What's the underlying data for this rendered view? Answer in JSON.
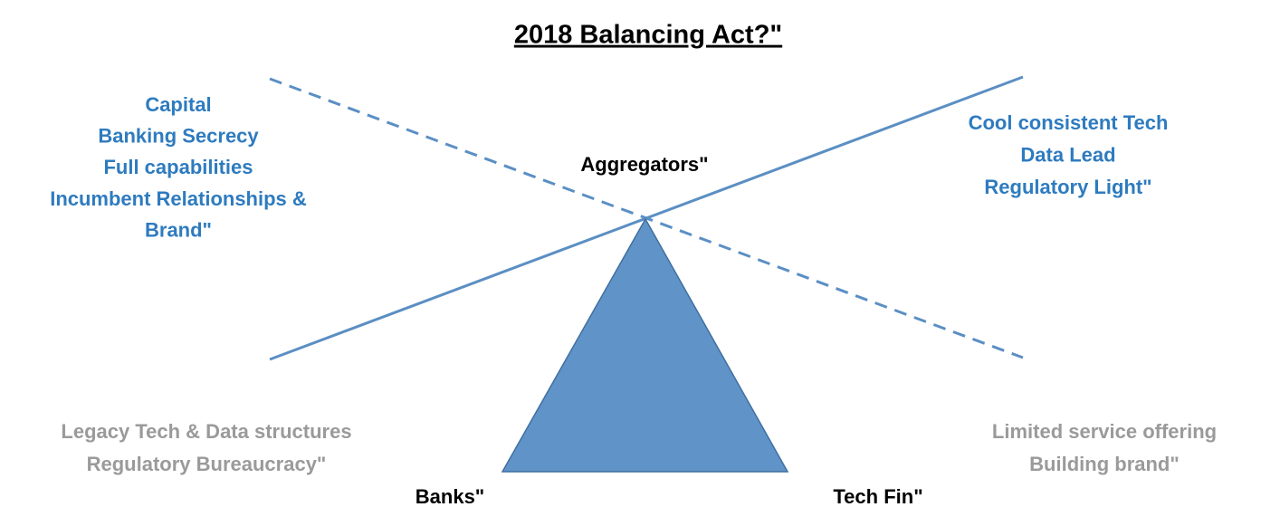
{
  "title": "2018 Balancing Act?\"",
  "bank_strengths": [
    "Capital",
    "Banking Secrecy",
    "Full capabilities",
    "Incumbent Relationships &",
    "Brand\""
  ],
  "techfin_strengths": [
    "Cool consistent Tech",
    "Data Lead",
    "Regulatory Light\""
  ],
  "center_label": "Aggregators\"",
  "bank_weaknesses": [
    "Legacy Tech & Data structures",
    "Regulatory Bureaucracy\""
  ],
  "techfin_weaknesses": [
    "Limited service offering",
    "Building brand\""
  ],
  "left_base_label": "Banks\"",
  "right_base_label": "Tech Fin\""
}
